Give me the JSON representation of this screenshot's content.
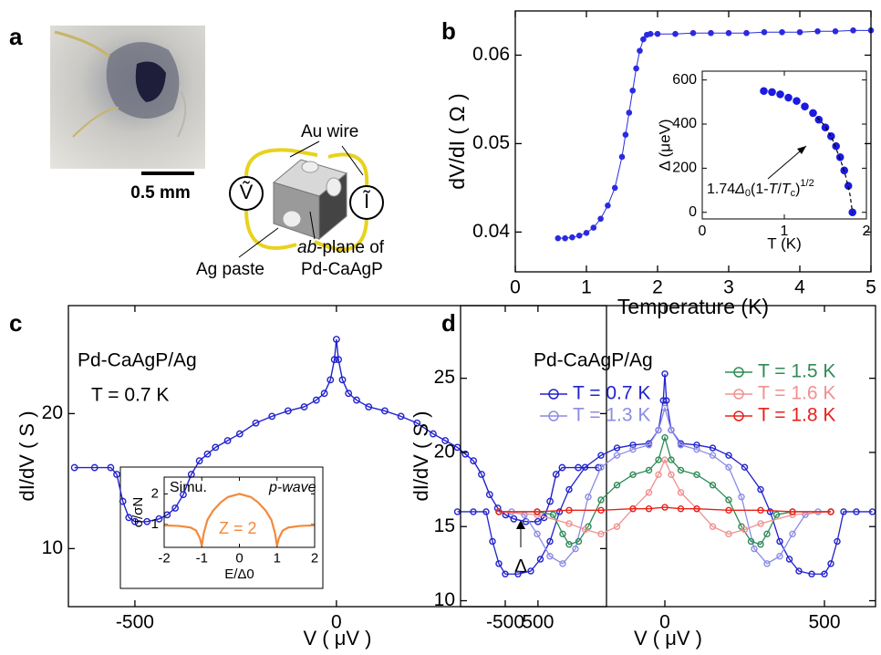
{
  "panel_labels": [
    "a",
    "b",
    "c",
    "d"
  ],
  "photo": {
    "scale_bar": "0.5 mm"
  },
  "schematic": {
    "wire_label": "Au wire",
    "paste_label": "Ag paste",
    "plane_label": [
      "ab",
      "-plane of",
      "Pd-CaAgP"
    ],
    "voltmeter": "Ṽ",
    "current": "Ĩ"
  },
  "chart_data": [
    {
      "type": "line",
      "xlabel": "Temperature (K)",
      "ylabel": "dV/dI ( Ω )",
      "xlim": [
        0,
        5
      ],
      "ylim": [
        0.0355,
        0.065
      ],
      "xticks": [
        0,
        1,
        2,
        3,
        4,
        5
      ],
      "yticks": [
        0.04,
        0.05,
        0.06
      ],
      "marker_fill": "filled",
      "series": [
        {
          "color": "#2a2ae0",
          "x": [
            0.6,
            0.7,
            0.8,
            0.9,
            1.0,
            1.1,
            1.2,
            1.3,
            1.4,
            1.5,
            1.55,
            1.6,
            1.65,
            1.7,
            1.75,
            1.8,
            1.85,
            1.9,
            2.0,
            2.25,
            2.5,
            2.75,
            3.0,
            3.25,
            3.5,
            3.75,
            4.0,
            4.25,
            4.5,
            4.75,
            5.0
          ],
          "values": [
            0.0393,
            0.0393,
            0.0394,
            0.0396,
            0.0399,
            0.0405,
            0.0415,
            0.043,
            0.045,
            0.0485,
            0.051,
            0.0535,
            0.056,
            0.0585,
            0.0605,
            0.0618,
            0.0623,
            0.0624,
            0.0624,
            0.0624,
            0.0625,
            0.0625,
            0.0625,
            0.0625,
            0.0626,
            0.0626,
            0.0626,
            0.0627,
            0.0627,
            0.0628,
            0.0628
          ]
        }
      ]
    },
    {
      "type": "scatter",
      "xlabel": "T (K)",
      "ylabel": "Δ (μeV)",
      "xlim": [
        0,
        2
      ],
      "ylim": [
        -30,
        640
      ],
      "xticks": [
        0,
        1,
        2
      ],
      "yticks": [
        0,
        200,
        400,
        600
      ],
      "marker_fill": "filled",
      "annotation": [
        "1.74",
        "Δ",
        "0",
        "(1-",
        "T",
        "/",
        "T",
        "c",
        ")",
        "1/2"
      ],
      "series": [
        {
          "color": "#1a1ae0",
          "line": false,
          "x": [
            0.75,
            0.85,
            0.95,
            1.05,
            1.15,
            1.25,
            1.35,
            1.42,
            1.5,
            1.57,
            1.63,
            1.68,
            1.73,
            1.78,
            1.83
          ],
          "values": [
            550,
            545,
            535,
            520,
            505,
            480,
            450,
            420,
            385,
            345,
            300,
            250,
            190,
            120,
            0
          ]
        },
        {
          "color": "#000000",
          "markers": false,
          "line_style": "dashed",
          "x": [
            1.4,
            1.5,
            1.6,
            1.7,
            1.75,
            1.8,
            1.83
          ],
          "values": [
            430,
            390,
            320,
            220,
            160,
            80,
            0
          ]
        }
      ]
    },
    {
      "type": "line",
      "xlabel": "V ( μV )",
      "ylabel": "dI/dV ( S )",
      "xlim": [
        -665,
        670
      ],
      "ylim": [
        5.7,
        28
      ],
      "xticks": [
        -500,
        0,
        500
      ],
      "yticks": [
        10,
        20
      ],
      "marker_fill": "open",
      "texts": [
        "Pd-CaAgP/Ag",
        "T = 0.7 K"
      ],
      "annotation": "Δ",
      "series": [
        {
          "color": "#2222cc",
          "x": [
            -650,
            -600,
            -560,
            -545,
            -530,
            -515,
            -500,
            -470,
            -440,
            -420,
            -400,
            -380,
            -360,
            -340,
            -320,
            -300,
            -270,
            -240,
            -200,
            -160,
            -120,
            -80,
            -50,
            -30,
            -15,
            -5,
            0,
            5,
            15,
            30,
            50,
            80,
            120,
            160,
            200,
            240,
            270,
            300,
            320,
            340,
            360,
            380,
            400,
            420,
            440,
            470,
            500,
            515,
            530,
            545,
            560,
            600,
            650
          ],
          "values": [
            16,
            16,
            16,
            15.5,
            13.5,
            12.3,
            12,
            12,
            12.2,
            12.5,
            13,
            14,
            15.5,
            16.5,
            17,
            17.5,
            18,
            18.5,
            19.3,
            19.8,
            20.2,
            20.5,
            21,
            21.5,
            22.5,
            24,
            25.5,
            24,
            22.5,
            21.5,
            21,
            20.5,
            20.2,
            19.8,
            19.3,
            18.5,
            18,
            17.5,
            17,
            16.5,
            15.5,
            14,
            13,
            12.5,
            12.2,
            12,
            12,
            12.3,
            13.5,
            15.5,
            16,
            16,
            16
          ]
        }
      ]
    },
    {
      "type": "line",
      "xlabel": "E/Δ0",
      "ylabel": "σ/σN",
      "xlim": [
        -2,
        2
      ],
      "ylim": [
        0.25,
        2.55
      ],
      "xticks": [
        -2,
        -1,
        0,
        1,
        2
      ],
      "yticks": [
        1,
        2
      ],
      "texts": [
        "Simu.",
        "p-wave",
        "Z = 2"
      ],
      "series": [
        {
          "color": "#f28a3c",
          "markers": false,
          "x": [
            -2,
            -1.6,
            -1.3,
            -1.15,
            -1.05,
            -1,
            -0.95,
            -0.85,
            -0.7,
            -0.5,
            -0.3,
            0,
            0.3,
            0.5,
            0.7,
            0.85,
            0.95,
            1,
            1.05,
            1.15,
            1.3,
            1.6,
            2
          ],
          "values": [
            0.97,
            0.95,
            0.9,
            0.8,
            0.55,
            0.3,
            0.7,
            1.15,
            1.45,
            1.72,
            1.9,
            2,
            1.9,
            1.72,
            1.45,
            1.15,
            0.7,
            0.3,
            0.55,
            0.8,
            0.9,
            0.95,
            0.97
          ]
        }
      ]
    },
    {
      "type": "line",
      "xlabel": "V ( μV )",
      "ylabel": "dI/dV ( S )",
      "xlim": [
        -640,
        660
      ],
      "ylim": [
        9.6,
        29.9
      ],
      "xticks": [
        -500,
        0,
        500
      ],
      "yticks": [
        10,
        15,
        20,
        25
      ],
      "marker_fill": "open",
      "texts": [
        "Pd-CaAgP/Ag"
      ],
      "series": [
        {
          "name": "T = 0.7 K",
          "color": "#2222cc",
          "x": [
            -650,
            -600,
            -560,
            -540,
            -520,
            -500,
            -460,
            -420,
            -390,
            -360,
            -330,
            -300,
            -250,
            -200,
            -150,
            -100,
            -50,
            -20,
            -5,
            0,
            5,
            20,
            50,
            100,
            150,
            200,
            250,
            300,
            330,
            360,
            390,
            420,
            460,
            500,
            520,
            540,
            560,
            600,
            650
          ],
          "values": [
            16,
            16,
            16,
            14,
            12.5,
            11.8,
            11.8,
            12,
            12.8,
            14,
            16,
            17.5,
            19,
            19.8,
            20.3,
            20.5,
            20.6,
            21.5,
            23.5,
            25.3,
            23.5,
            21.5,
            20.6,
            20.5,
            20.3,
            19.8,
            19,
            17.5,
            16,
            14,
            12.8,
            12,
            11.8,
            11.8,
            12.5,
            14,
            16,
            16,
            16
          ]
        },
        {
          "name": "T = 1.3 K",
          "color": "#8c8ce6",
          "x": [
            -520,
            -480,
            -440,
            -400,
            -360,
            -320,
            -280,
            -240,
            -200,
            -150,
            -100,
            -50,
            -20,
            0,
            20,
            50,
            100,
            150,
            200,
            240,
            280,
            320,
            360,
            400,
            440,
            480,
            520
          ],
          "values": [
            16,
            16,
            15.8,
            14.5,
            13,
            12.5,
            13.5,
            17,
            19,
            19.8,
            20.2,
            20.5,
            21.5,
            23,
            21.5,
            20.5,
            20.2,
            19.8,
            19,
            17,
            13.5,
            12.5,
            13,
            14.5,
            15.8,
            16,
            16
          ]
        },
        {
          "name": "T = 1.5 K",
          "color": "#2e8b57",
          "x": [
            -520,
            -400,
            -350,
            -320,
            -300,
            -270,
            -240,
            -200,
            -150,
            -100,
            -50,
            -20,
            0,
            20,
            50,
            100,
            150,
            200,
            240,
            270,
            300,
            320,
            350,
            400,
            520
          ],
          "values": [
            16,
            16,
            15.8,
            14.5,
            13.8,
            14,
            15,
            16.8,
            17.8,
            18.5,
            18.8,
            19.5,
            21,
            19.5,
            18.8,
            18.5,
            17.8,
            16.8,
            15,
            14,
            13.8,
            14.5,
            15.8,
            16,
            16
          ]
        },
        {
          "name": "T = 1.6 K",
          "color": "#f09090",
          "x": [
            -520,
            -400,
            -300,
            -250,
            -200,
            -150,
            -100,
            -50,
            -20,
            0,
            20,
            50,
            100,
            150,
            200,
            250,
            300,
            400,
            520
          ],
          "values": [
            16,
            15.8,
            15.2,
            14.8,
            14.5,
            15,
            16.2,
            17.3,
            18.5,
            19.5,
            18.5,
            17.3,
            16.2,
            15,
            14.5,
            14.8,
            15.2,
            15.8,
            16
          ]
        },
        {
          "name": "T = 1.8 K",
          "color": "#e8221a",
          "x": [
            -520,
            -400,
            -300,
            -200,
            -100,
            -50,
            0,
            50,
            100,
            200,
            300,
            400,
            520
          ],
          "values": [
            16,
            16,
            16.1,
            16.1,
            16.2,
            16.2,
            16.3,
            16.2,
            16.2,
            16.1,
            16.1,
            16,
            16
          ]
        }
      ]
    }
  ]
}
